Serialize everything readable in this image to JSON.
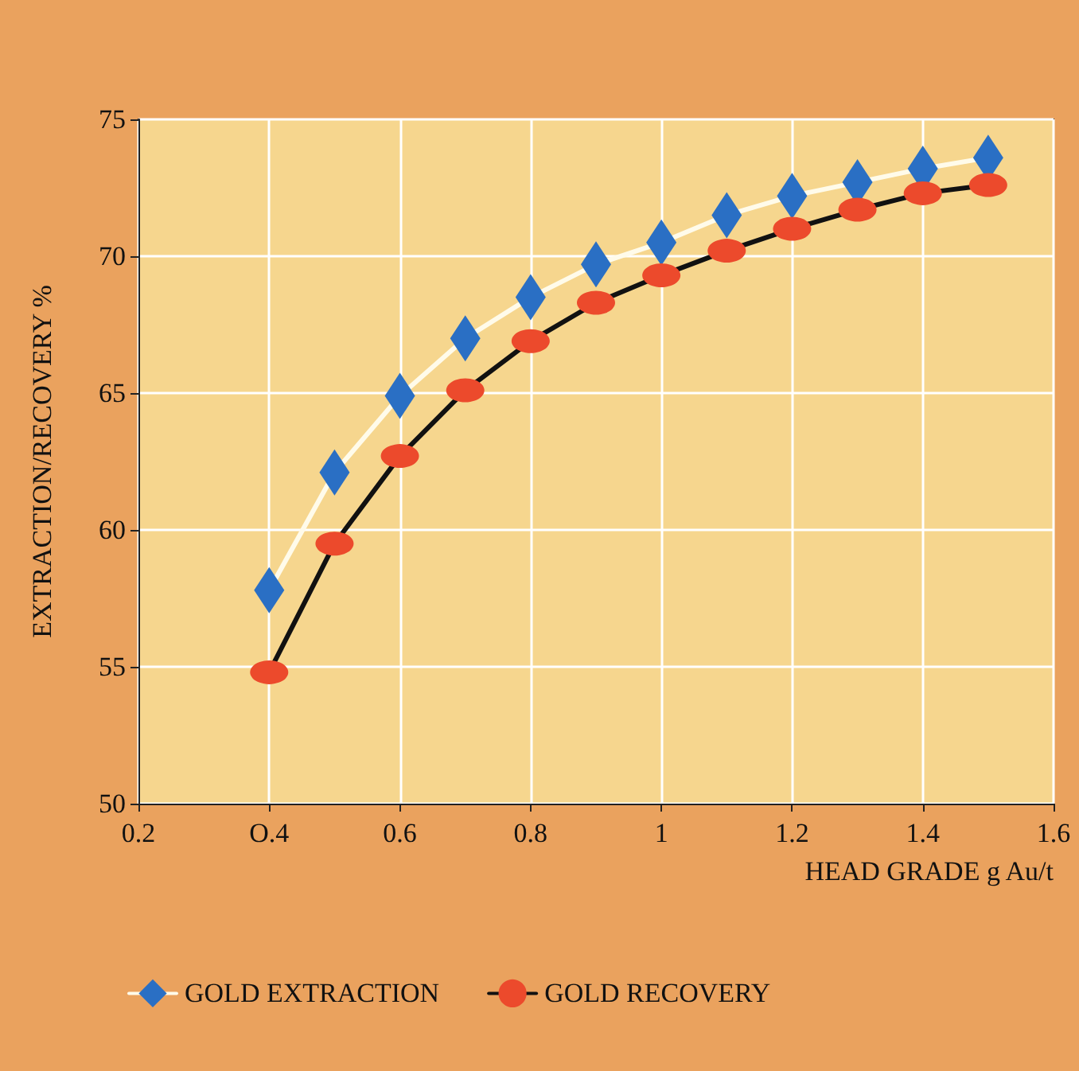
{
  "chart_data": {
    "type": "line",
    "xlabel": "HEAD GRADE g Au/t",
    "ylabel": "EXTRACTION/RECOVERY %",
    "x": [
      0.4,
      0.5,
      0.6,
      0.7,
      0.8,
      0.9,
      1.0,
      1.1,
      1.2,
      1.3,
      1.4,
      1.5
    ],
    "series": [
      {
        "name": "GOLD EXTRACTION",
        "color": "#fffbea",
        "colors": [
          "#2a6fc4",
          "#2a6fc4",
          "#2a6fc4",
          "#2a6fc4",
          "#2a6fc4",
          "#2a6fc4",
          "#2a6fc4",
          "#2a6fc4",
          "#2a6fc4",
          "#2a6fc4",
          "#2a6fc4",
          "#2a6fc4"
        ],
        "marker": "diamond",
        "values": [
          57.8,
          62.1,
          64.9,
          67.0,
          68.5,
          69.7,
          70.5,
          71.5,
          72.2,
          72.7,
          73.2,
          73.6
        ]
      },
      {
        "name": "GOLD RECOVERY",
        "color": "#111111",
        "colors": [
          "#ec4a2c",
          "#ec4a2c",
          "#ec4a2c",
          "#ec4a2c",
          "#ec4a2c",
          "#ec4a2c",
          "#ec4a2c",
          "#ec4a2c",
          "#ec4a2c",
          "#ec4a2c",
          "#ec4a2c",
          "#ec4a2c"
        ],
        "marker": "circle",
        "values": [
          54.8,
          59.5,
          62.7,
          65.1,
          66.9,
          68.3,
          69.3,
          70.2,
          71.0,
          71.7,
          72.3,
          72.6
        ]
      }
    ],
    "xlim": [
      0.2,
      1.6
    ],
    "xticks": [
      0.2,
      {
        "value": 0.4,
        "label": "O.4"
      },
      0.6,
      0.8,
      1,
      1.2,
      1.4,
      1.6
    ],
    "ylim": [
      50,
      75
    ],
    "yticks": [
      50,
      55,
      60,
      65,
      70,
      75
    ],
    "grid": true,
    "legend": "bottom left"
  }
}
